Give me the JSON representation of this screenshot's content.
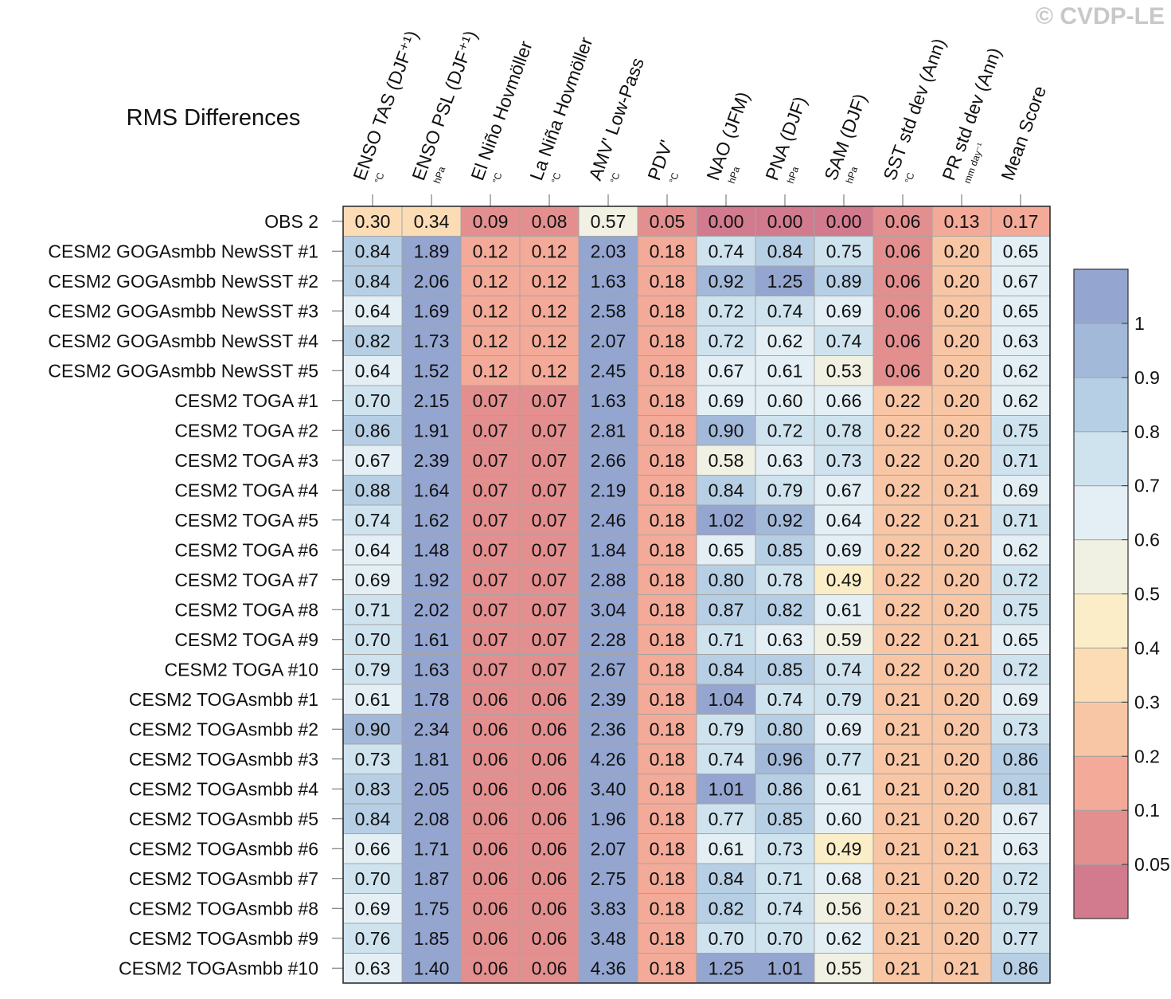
{
  "watermark": "© CVDP-LE",
  "chart_data": {
    "type": "heatmap",
    "title": "RMS Differences",
    "columns": [
      {
        "label": "ENSO TAS (DJF⁺¹)",
        "unit": "°C"
      },
      {
        "label": "ENSO PSL (DJF⁺¹)",
        "unit": "hPa"
      },
      {
        "label": "El Niño Hovmöller",
        "unit": "°C"
      },
      {
        "label": "La Niña Hovmöller",
        "unit": "°C"
      },
      {
        "label": "AMV' Low-Pass",
        "unit": "°C"
      },
      {
        "label": "PDV'",
        "unit": "°C"
      },
      {
        "label": "NAO (JFM)",
        "unit": "hPa"
      },
      {
        "label": "PNA (DJF)",
        "unit": "hPa"
      },
      {
        "label": "SAM (DJF)",
        "unit": "hPa"
      },
      {
        "label": "SST std dev (Ann)",
        "unit": "°C"
      },
      {
        "label": "PR std dev (Ann)",
        "unit": "mm day⁻¹"
      },
      {
        "label": "Mean Score",
        "unit": ""
      }
    ],
    "rows": [
      {
        "label": "OBS 2",
        "values": [
          0.3,
          0.34,
          0.09,
          0.08,
          0.57,
          0.05,
          0.0,
          0.0,
          0.0,
          0.06,
          0.13,
          0.17
        ]
      },
      {
        "label": "CESM2 GOGAsmbb NewSST #1",
        "values": [
          0.84,
          1.89,
          0.12,
          0.12,
          2.03,
          0.18,
          0.74,
          0.84,
          0.75,
          0.06,
          0.2,
          0.65
        ]
      },
      {
        "label": "CESM2 GOGAsmbb NewSST #2",
        "values": [
          0.84,
          2.06,
          0.12,
          0.12,
          1.63,
          0.18,
          0.92,
          1.25,
          0.89,
          0.06,
          0.2,
          0.67
        ]
      },
      {
        "label": "CESM2 GOGAsmbb NewSST #3",
        "values": [
          0.64,
          1.69,
          0.12,
          0.12,
          2.58,
          0.18,
          0.72,
          0.74,
          0.69,
          0.06,
          0.2,
          0.65
        ]
      },
      {
        "label": "CESM2 GOGAsmbb NewSST #4",
        "values": [
          0.82,
          1.73,
          0.12,
          0.12,
          2.07,
          0.18,
          0.72,
          0.62,
          0.74,
          0.06,
          0.2,
          0.63
        ]
      },
      {
        "label": "CESM2 GOGAsmbb NewSST #5",
        "values": [
          0.64,
          1.52,
          0.12,
          0.12,
          2.45,
          0.18,
          0.67,
          0.61,
          0.53,
          0.06,
          0.2,
          0.62
        ]
      },
      {
        "label": "CESM2 TOGA #1",
        "values": [
          0.7,
          2.15,
          0.07,
          0.07,
          1.63,
          0.18,
          0.69,
          0.6,
          0.66,
          0.22,
          0.2,
          0.62
        ]
      },
      {
        "label": "CESM2 TOGA #2",
        "values": [
          0.86,
          1.91,
          0.07,
          0.07,
          2.81,
          0.18,
          0.9,
          0.72,
          0.78,
          0.22,
          0.2,
          0.75
        ]
      },
      {
        "label": "CESM2 TOGA #3",
        "values": [
          0.67,
          2.39,
          0.07,
          0.07,
          2.66,
          0.18,
          0.58,
          0.63,
          0.73,
          0.22,
          0.2,
          0.71
        ]
      },
      {
        "label": "CESM2 TOGA #4",
        "values": [
          0.88,
          1.64,
          0.07,
          0.07,
          2.19,
          0.18,
          0.84,
          0.79,
          0.67,
          0.22,
          0.21,
          0.69
        ]
      },
      {
        "label": "CESM2 TOGA #5",
        "values": [
          0.74,
          1.62,
          0.07,
          0.07,
          2.46,
          0.18,
          1.02,
          0.92,
          0.64,
          0.22,
          0.21,
          0.71
        ]
      },
      {
        "label": "CESM2 TOGA #6",
        "values": [
          0.64,
          1.48,
          0.07,
          0.07,
          1.84,
          0.18,
          0.65,
          0.85,
          0.69,
          0.22,
          0.2,
          0.62
        ]
      },
      {
        "label": "CESM2 TOGA #7",
        "values": [
          0.69,
          1.92,
          0.07,
          0.07,
          2.88,
          0.18,
          0.8,
          0.78,
          0.49,
          0.22,
          0.2,
          0.72
        ]
      },
      {
        "label": "CESM2 TOGA #8",
        "values": [
          0.71,
          2.02,
          0.07,
          0.07,
          3.04,
          0.18,
          0.87,
          0.82,
          0.61,
          0.22,
          0.2,
          0.75
        ]
      },
      {
        "label": "CESM2 TOGA #9",
        "values": [
          0.7,
          1.61,
          0.07,
          0.07,
          2.28,
          0.18,
          0.71,
          0.63,
          0.59,
          0.22,
          0.21,
          0.65
        ]
      },
      {
        "label": "CESM2 TOGA #10",
        "values": [
          0.79,
          1.63,
          0.07,
          0.07,
          2.67,
          0.18,
          0.84,
          0.85,
          0.74,
          0.22,
          0.2,
          0.72
        ]
      },
      {
        "label": "CESM2 TOGAsmbb #1",
        "values": [
          0.61,
          1.78,
          0.06,
          0.06,
          2.39,
          0.18,
          1.04,
          0.74,
          0.79,
          0.21,
          0.2,
          0.69
        ]
      },
      {
        "label": "CESM2 TOGAsmbb #2",
        "values": [
          0.9,
          2.34,
          0.06,
          0.06,
          2.36,
          0.18,
          0.79,
          0.8,
          0.69,
          0.21,
          0.2,
          0.73
        ]
      },
      {
        "label": "CESM2 TOGAsmbb #3",
        "values": [
          0.73,
          1.81,
          0.06,
          0.06,
          4.26,
          0.18,
          0.74,
          0.96,
          0.77,
          0.21,
          0.2,
          0.86
        ]
      },
      {
        "label": "CESM2 TOGAsmbb #4",
        "values": [
          0.83,
          2.05,
          0.06,
          0.06,
          3.4,
          0.18,
          1.01,
          0.86,
          0.61,
          0.21,
          0.2,
          0.81
        ]
      },
      {
        "label": "CESM2 TOGAsmbb #5",
        "values": [
          0.84,
          2.08,
          0.06,
          0.06,
          1.96,
          0.18,
          0.77,
          0.85,
          0.6,
          0.21,
          0.2,
          0.67
        ]
      },
      {
        "label": "CESM2 TOGAsmbb #6",
        "values": [
          0.66,
          1.71,
          0.06,
          0.06,
          2.07,
          0.18,
          0.61,
          0.73,
          0.49,
          0.21,
          0.21,
          0.63
        ]
      },
      {
        "label": "CESM2 TOGAsmbb #7",
        "values": [
          0.7,
          1.87,
          0.06,
          0.06,
          2.75,
          0.18,
          0.84,
          0.71,
          0.68,
          0.21,
          0.2,
          0.72
        ]
      },
      {
        "label": "CESM2 TOGAsmbb #8",
        "values": [
          0.69,
          1.75,
          0.06,
          0.06,
          3.83,
          0.18,
          0.82,
          0.74,
          0.56,
          0.21,
          0.2,
          0.79
        ]
      },
      {
        "label": "CESM2 TOGAsmbb #9",
        "values": [
          0.76,
          1.85,
          0.06,
          0.06,
          3.48,
          0.18,
          0.7,
          0.7,
          0.62,
          0.21,
          0.2,
          0.77
        ]
      },
      {
        "label": "CESM2 TOGAsmbb #10",
        "values": [
          0.63,
          1.4,
          0.06,
          0.06,
          4.36,
          0.18,
          1.25,
          1.01,
          0.55,
          0.21,
          0.21,
          0.86
        ]
      }
    ],
    "colorbar": {
      "boundaries": [
        0.05,
        0.1,
        0.2,
        0.3,
        0.4,
        0.5,
        0.6,
        0.7,
        0.8,
        0.9,
        1
      ],
      "tick_labels": [
        "0.05",
        "0.1",
        "0.2",
        "0.3",
        "0.4",
        "0.5",
        "0.6",
        "0.7",
        "0.8",
        "0.9",
        "1"
      ],
      "colors": [
        "#d27b8e",
        "#e38f8f",
        "#f3aa98",
        "#f8c6a5",
        "#fbdcb5",
        "#faedc8",
        "#f1f1e3",
        "#e3eff5",
        "#cfe3ef",
        "#b7cfe4",
        "#a3b9d9",
        "#94a5d0"
      ]
    }
  }
}
